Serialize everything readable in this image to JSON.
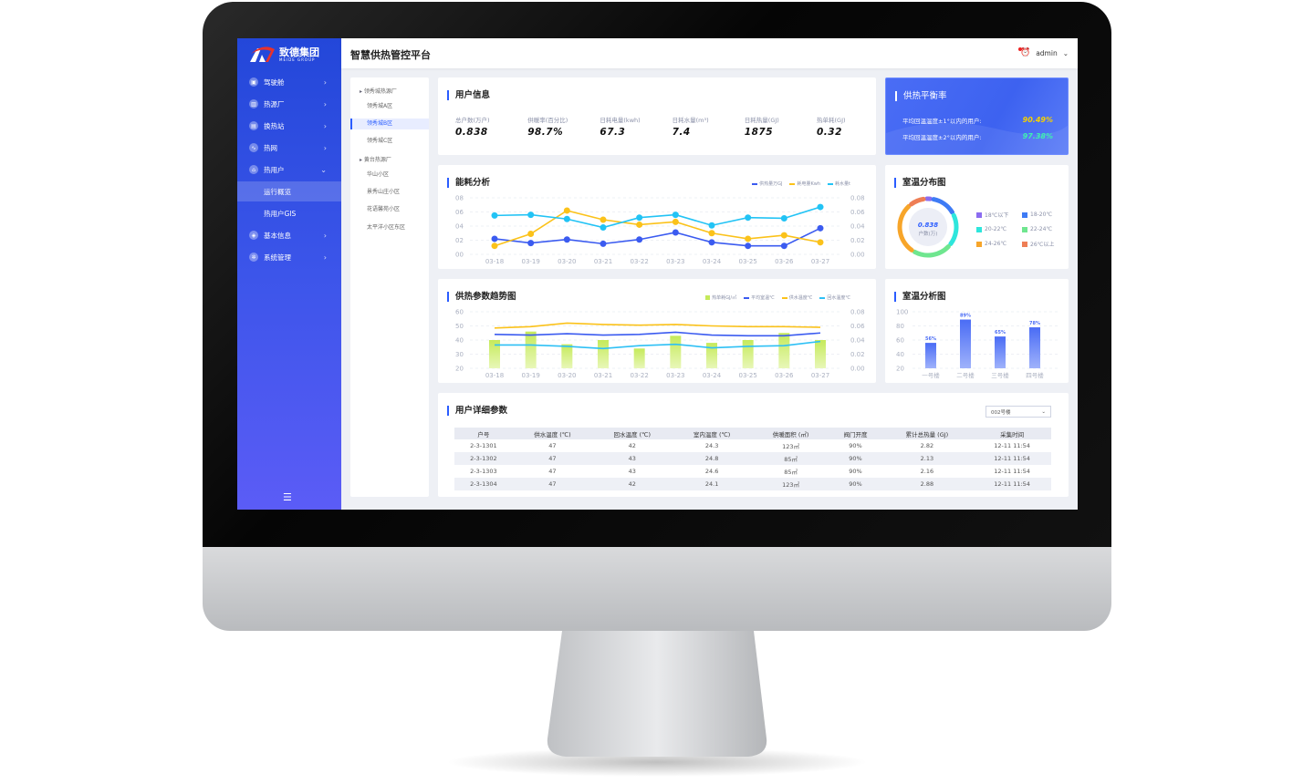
{
  "app": {
    "logo_text": "致德集团",
    "logo_sub": "MEIDE GROUP",
    "title": "智慧供热管控平台",
    "user": "admin"
  },
  "sidebar": {
    "items": [
      {
        "label": "驾驶舱",
        "icon": "dashboard-icon"
      },
      {
        "label": "热源厂",
        "icon": "factory-icon"
      },
      {
        "label": "换热站",
        "icon": "station-icon"
      },
      {
        "label": "热网",
        "icon": "network-icon"
      },
      {
        "label": "热用户",
        "icon": "user-home-icon",
        "expanded": true
      },
      {
        "label": "运行概览",
        "sub": true,
        "active": true
      },
      {
        "label": "热用户GIS",
        "sub": true
      },
      {
        "label": "基本信息",
        "icon": "info-icon"
      },
      {
        "label": "系统管理",
        "icon": "gear-icon"
      }
    ]
  },
  "tree": {
    "items": [
      {
        "label": "领秀城热源厂",
        "group": true
      },
      {
        "label": "领秀城A区"
      },
      {
        "label": "领秀城B区",
        "selected": true
      },
      {
        "label": "领秀城C区"
      },
      {
        "label": "黄台热源厂",
        "group": true
      },
      {
        "label": "华山小区"
      },
      {
        "label": "景秀山庄小区"
      },
      {
        "label": "花语馨苑小区"
      },
      {
        "label": "太平洋小区东区"
      }
    ]
  },
  "user_info": {
    "title": "用户信息",
    "metrics": [
      {
        "label": "总户数(万户)",
        "value": "0.838"
      },
      {
        "label": "供暖率(百分比)",
        "value": "98.7%"
      },
      {
        "label": "日耗电量(kwh)",
        "value": "67.3"
      },
      {
        "label": "日耗水量(m³)",
        "value": "7.4"
      },
      {
        "label": "日耗热量(GJ)",
        "value": "1875"
      },
      {
        "label": "热单耗(GJ)",
        "value": "0.32"
      }
    ]
  },
  "balance": {
    "title": "供热平衡率",
    "rows": [
      {
        "label": "平均回温温度±1°以内的用户:",
        "value": "90.49%",
        "color": "#f5d000"
      },
      {
        "label": "平均回温温度±2°以内的用户:",
        "value": "97.38%",
        "color": "#3df0b0"
      }
    ]
  },
  "chart_data": [
    {
      "type": "line",
      "title": "能耗分析",
      "categories": [
        "03-18",
        "03-19",
        "03-20",
        "03-21",
        "03-22",
        "03-23",
        "03-24",
        "03-25",
        "03-26",
        "03-27"
      ],
      "y_ticks": [
        "00",
        "02",
        "04",
        "06",
        "08"
      ],
      "ylim": [
        0,
        8
      ],
      "y2_ticks": [
        "0.00",
        "0.02",
        "0.04",
        "0.06",
        "0.08"
      ],
      "y2lim": [
        0,
        0.08
      ],
      "legend": "top-right",
      "grid": true,
      "series": [
        {
          "name": "供热量万GJ",
          "color": "#3b5bf0",
          "values": [
            2.2,
            1.6,
            2.1,
            1.5,
            2.1,
            3.1,
            1.7,
            1.2,
            1.2,
            3.7
          ]
        },
        {
          "name": "耗电量Kwh",
          "color": "#fbc21a",
          "values": [
            1.2,
            2.9,
            6.2,
            4.9,
            4.2,
            4.6,
            3.0,
            2.2,
            2.7,
            1.7
          ]
        },
        {
          "name": "耗水量t",
          "color": "#22c3f5",
          "values": [
            5.5,
            5.6,
            5.0,
            3.8,
            5.2,
            5.6,
            4.1,
            5.2,
            5.1,
            6.7
          ]
        }
      ]
    },
    {
      "type": "bar+line",
      "title": "供热参数趋势图",
      "categories": [
        "03-18",
        "03-19",
        "03-20",
        "03-21",
        "03-22",
        "03-23",
        "03-24",
        "03-25",
        "03-26",
        "03-27"
      ],
      "y_ticks": [
        "20",
        "30",
        "40",
        "50",
        "60"
      ],
      "ylim": [
        20,
        60
      ],
      "y2_ticks": [
        "0.00",
        "0.02",
        "0.04",
        "0.06",
        "0.08"
      ],
      "y2lim": [
        0,
        0.08
      ],
      "legend": "top-right",
      "grid": true,
      "bars": {
        "name": "热单耗GJ/㎡",
        "color": "#c5ea5a",
        "axis": "right",
        "values": [
          0.04,
          0.052,
          0.034,
          0.04,
          0.028,
          0.046,
          0.036,
          0.04,
          0.05,
          0.04
        ]
      },
      "series": [
        {
          "name": "平均室温℃",
          "color": "#3b5bf0",
          "values": [
            44,
            43.5,
            44.5,
            43.5,
            44,
            45.5,
            43.5,
            43,
            43,
            45
          ]
        },
        {
          "name": "供水温度℃",
          "color": "#fbc21a",
          "values": [
            48.5,
            49.5,
            52,
            51,
            50.5,
            51,
            50,
            49.5,
            49.5,
            49
          ]
        },
        {
          "name": "回水温度℃",
          "color": "#2ec0f5",
          "values": [
            36.5,
            36.5,
            35.5,
            34,
            36,
            37,
            34.5,
            35.5,
            36,
            39
          ]
        }
      ]
    },
    {
      "type": "pie",
      "title": "室温分布图",
      "center_value": "0.838",
      "center_label": "户数(万)",
      "slices": [
        {
          "name": "18℃以下",
          "color": "#8b6cf0",
          "value": 2
        },
        {
          "name": "18-20℃",
          "color": "#3e7bf5",
          "value": 14
        },
        {
          "name": "20-22℃",
          "color": "#2ee6dc",
          "value": 18
        },
        {
          "name": "22-24℃",
          "color": "#6fe68f",
          "value": 22
        },
        {
          "name": "24-26℃",
          "color": "#f7a52a",
          "value": 30
        },
        {
          "name": "26℃以上",
          "color": "#ee7e55",
          "value": 8
        }
      ]
    },
    {
      "type": "bar",
      "title": "室温分析图",
      "categories": [
        "一号楼",
        "二号楼",
        "三号楼",
        "四号楼"
      ],
      "values": [
        56,
        89,
        65,
        78
      ],
      "labels": [
        "56%",
        "89%",
        "65%",
        "78%"
      ],
      "y_ticks": [
        "20",
        "40",
        "60",
        "80",
        "100"
      ],
      "ylim": [
        20,
        100
      ],
      "grid": true,
      "color": "#4a6cf5"
    }
  ],
  "table": {
    "title": "用户详细参数",
    "select": "002号楼",
    "columns": [
      "户号",
      "供水温度 (℃)",
      "回水温度 (℃)",
      "室内温度 (℃)",
      "供暖面积 (㎡)",
      "阀门开度",
      "累计总热量 (GJ)",
      "采集时间"
    ],
    "rows": [
      [
        "2-3-1301",
        "47",
        "42",
        "24.3",
        "123㎡",
        "90%",
        "2.82",
        "12-11 11:54"
      ],
      [
        "2-3-1302",
        "47",
        "43",
        "24.8",
        "85㎡",
        "90%",
        "2.13",
        "12-11 11:54"
      ],
      [
        "2-3-1303",
        "47",
        "43",
        "24.6",
        "85㎡",
        "90%",
        "2.16",
        "12-11 11:54"
      ],
      [
        "2-3-1304",
        "47",
        "42",
        "24.1",
        "123㎡",
        "90%",
        "2.88",
        "12-11 11:54"
      ]
    ]
  }
}
